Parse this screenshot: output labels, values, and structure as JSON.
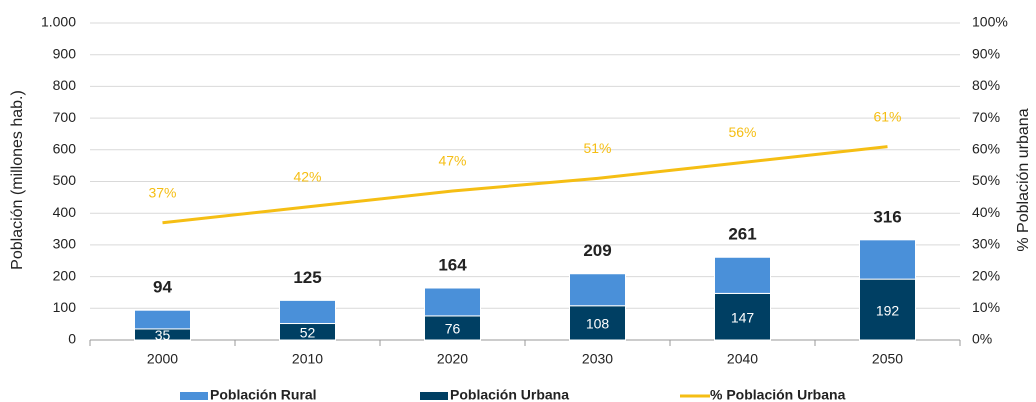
{
  "chart_data": {
    "type": "bar",
    "categories": [
      "2000",
      "2010",
      "2020",
      "2030",
      "2040",
      "2050"
    ],
    "series": [
      {
        "name": "Población Rural",
        "color": "#4a90d9",
        "values": [
          59,
          73,
          88,
          101,
          114,
          124
        ]
      },
      {
        "name": "Población Urbana",
        "color": "#003f63",
        "values": [
          35,
          52,
          76,
          108,
          147,
          192
        ]
      },
      {
        "name": "% Población Urbana",
        "type": "line",
        "axis": "y2",
        "color": "#f5be14",
        "values": [
          37,
          42,
          47,
          51,
          56,
          61
        ],
        "value_labels": [
          "37%",
          "42%",
          "47%",
          "51%",
          "56%",
          "61%"
        ]
      }
    ],
    "totals": [
      94,
      125,
      164,
      209,
      261,
      316
    ],
    "stacked": true,
    "ylabel": "Población (millones hab.)",
    "y2label": "% Población urbana",
    "ylim": [
      0,
      1000
    ],
    "yticks": [
      0,
      100,
      200,
      300,
      400,
      500,
      600,
      700,
      800,
      900,
      {
        "value": 1000,
        "label": "1.000"
      }
    ],
    "y2lim": [
      0,
      100
    ],
    "y2ticks": [
      {
        "value": 0,
        "label": "0%"
      },
      {
        "value": 10,
        "label": "10%"
      },
      {
        "value": 20,
        "label": "20%"
      },
      {
        "value": 30,
        "label": "30%"
      },
      {
        "value": 40,
        "label": "40%"
      },
      {
        "value": 50,
        "label": "50%"
      },
      {
        "value": 60,
        "label": "60%"
      },
      {
        "value": 70,
        "label": "70%"
      },
      {
        "value": 80,
        "label": "80%"
      },
      {
        "value": 90,
        "label": "90%"
      },
      {
        "value": 100,
        "label": "100%"
      }
    ],
    "legend": "bottom"
  }
}
